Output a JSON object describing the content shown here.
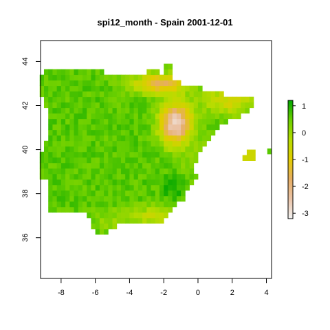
{
  "title": "spi12_month - Spain 2001-12-01",
  "x_axis": {
    "ticks": [
      -8,
      -6,
      -4,
      -2,
      0,
      2,
      4
    ],
    "range": [
      -9.2,
      4.3
    ]
  },
  "y_axis": {
    "ticks": [
      36,
      38,
      40,
      42,
      44
    ],
    "range": [
      34.15,
      44.95
    ]
  },
  "legend": {
    "ticks": [
      1,
      0,
      -1,
      -2,
      -3
    ],
    "range": [
      -3.2,
      1.2
    ],
    "colors": [
      "#f2f2f2",
      "#eac3a6",
      "#e6ad63",
      "#e2cc00",
      "#b7dc00",
      "#6cd000",
      "#00a600"
    ]
  },
  "colors": {
    "frame": "#000000",
    "background": "#ffffff"
  }
}
